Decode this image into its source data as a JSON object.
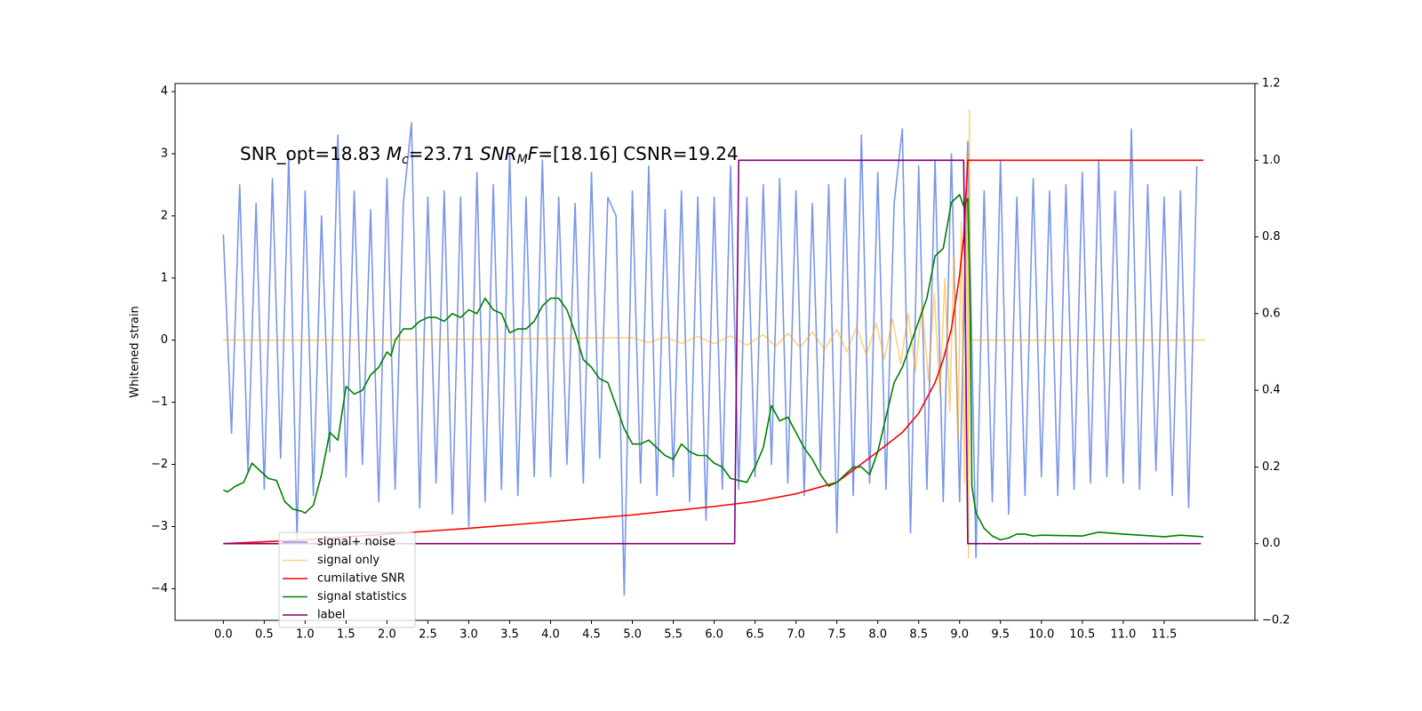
{
  "chart_data": {
    "type": "line",
    "annotation_parts": [
      {
        "text": "SNR_opt=18.83 "
      },
      {
        "text": "M",
        "style": "italic"
      },
      {
        "text": "c",
        "style": "italic-sub"
      },
      {
        "text": "=23.71  "
      },
      {
        "text": "SNR",
        "style": "italic"
      },
      {
        "text": "M",
        "style": "italic-sub"
      },
      {
        "text": "F",
        "style": "italic"
      },
      {
        "text": "=[18.16] CSNR=19.24"
      }
    ],
    "ylabel": "Whitened strain",
    "xlim": [
      -0.59,
      12.61
    ],
    "ylim": [
      -4.51,
      4.13
    ],
    "y2lim": [
      -0.2,
      1.2
    ],
    "xticks": [
      {
        "value": 0,
        "label": "0.0"
      },
      0.5,
      {
        "value": 1,
        "label": "1.0"
      },
      1.5,
      {
        "value": 2,
        "label": "2.0"
      },
      2.5,
      {
        "value": 3,
        "label": "3.0"
      },
      3.5,
      {
        "value": 4,
        "label": "4.0"
      },
      4.5,
      {
        "value": 5,
        "label": "5.0"
      },
      5.5,
      {
        "value": 6,
        "label": "6.0"
      },
      6.5,
      {
        "value": 7,
        "label": "7.0"
      },
      7.5,
      {
        "value": 8,
        "label": "8.0"
      },
      8.5,
      {
        "value": 9,
        "label": "9.0"
      },
      9.5,
      {
        "value": 10,
        "label": "10.0"
      },
      10.5,
      {
        "value": 11,
        "label": "11.0"
      },
      11.5
    ],
    "yticks": [
      {
        "value": -4,
        "label": "−4"
      },
      {
        "value": -3,
        "label": "−3"
      },
      {
        "value": -2,
        "label": "−2"
      },
      {
        "value": -1,
        "label": "−1"
      },
      0,
      1,
      2,
      3,
      4
    ],
    "y2ticks": [
      {
        "value": -0.2,
        "label": "−0.2"
      },
      {
        "value": 0,
        "label": "0.0"
      },
      0.2,
      0.4,
      0.6,
      0.8,
      {
        "value": 1,
        "label": "1.0"
      },
      1.2
    ],
    "legend": "lower left",
    "series": [
      {
        "name": "signal+ noise",
        "color": "#4169e1",
        "alpha": 0.7,
        "x": [
          0,
          0.1,
          0.2,
          0.3,
          0.4,
          0.5,
          0.6,
          0.7,
          0.8,
          0.9,
          1,
          1.1,
          1.2,
          1.3,
          1.4,
          1.5,
          1.6,
          1.7,
          1.8,
          1.9,
          2,
          2.1,
          2.2,
          2.3,
          2.4,
          2.5,
          2.6,
          2.7,
          2.8,
          2.9,
          3,
          3.1,
          3.2,
          3.3,
          3.4,
          3.5,
          3.6,
          3.7,
          3.8,
          3.9,
          4,
          4.1,
          4.2,
          4.3,
          4.4,
          4.5,
          4.6,
          4.7,
          4.8,
          4.9,
          5,
          5.1,
          5.2,
          5.3,
          5.4,
          5.5,
          5.6,
          5.7,
          5.8,
          5.9,
          6,
          6.1,
          6.2,
          6.3,
          6.4,
          6.5,
          6.6,
          6.7,
          6.8,
          6.9,
          7,
          7.1,
          7.2,
          7.3,
          7.4,
          7.5,
          7.6,
          7.7,
          7.8,
          7.9,
          8,
          8.1,
          8.2,
          8.3,
          8.4,
          8.5,
          8.6,
          8.7,
          8.8,
          8.9,
          9,
          9.1,
          9.2,
          9.3,
          9.4,
          9.5,
          9.6,
          9.7,
          9.8,
          9.9,
          10,
          10.1,
          10.2,
          10.3,
          10.4,
          10.5,
          10.6,
          10.7,
          10.8,
          10.9,
          11,
          11.1,
          11.2,
          11.3,
          11.4,
          11.5,
          11.6,
          11.7,
          11.8,
          11.9
        ],
        "values": [
          1.7,
          -1.5,
          2.5,
          -2.1,
          2.2,
          -2.4,
          2.6,
          -1.9,
          3.0,
          -3.2,
          2.4,
          -2.5,
          2.0,
          -1.8,
          3.3,
          -2.2,
          2.4,
          -2.0,
          2.1,
          -2.6,
          2.6,
          -2.4,
          2.2,
          3.5,
          -2.7,
          2.3,
          -2.3,
          2.4,
          -2.8,
          2.3,
          -3.0,
          2.7,
          -2.6,
          2.5,
          -2.4,
          3.0,
          -2.5,
          2.3,
          -2.2,
          2.9,
          -2.2,
          2.3,
          -2.0,
          2.2,
          -2.3,
          2.7,
          -1.9,
          2.3,
          2.0,
          -4.1,
          2.4,
          -2.3,
          2.8,
          -2.5,
          2.1,
          -2.2,
          2.4,
          -2.6,
          2.3,
          -2.9,
          2.3,
          -2.4,
          2.8,
          -2.4,
          2.3,
          -2.2,
          2.5,
          -2.0,
          2.6,
          -2.3,
          2.4,
          -2.5,
          2.2,
          -2.1,
          2.5,
          -3.1,
          2.6,
          -2.5,
          3.3,
          -2.3,
          2.7,
          -2.4,
          2.2,
          3.4,
          -3.1,
          2.8,
          -2.4,
          2.9,
          -2.6,
          3.0,
          -2.6,
          3.2,
          -3.5,
          2.4,
          -2.6,
          2.9,
          -2.8,
          2.3,
          -2.5,
          2.6,
          -2.2,
          2.4,
          -2.5,
          2.5,
          -2.4,
          2.7,
          -2.3,
          2.9,
          -2.2,
          2.4,
          -2.3,
          3.4,
          -2.4,
          2.5,
          -2.1,
          2.3,
          -2.5,
          2.4,
          -2.7,
          2.8
        ]
      },
      {
        "name": "signal only",
        "color": "orange",
        "alpha": 0.5,
        "x": [
          0,
          2,
          5,
          5.2,
          5.4,
          5.6,
          5.8,
          6,
          6.2,
          6.4,
          6.6,
          6.75,
          6.9,
          7.05,
          7.2,
          7.35,
          7.5,
          7.62,
          7.74,
          7.86,
          7.98,
          8.08,
          8.18,
          8.28,
          8.37,
          8.46,
          8.54,
          8.62,
          8.69,
          8.76,
          8.82,
          8.88,
          8.93,
          8.98,
          9.02,
          9.06,
          9.09,
          9.11,
          9.12,
          9.13,
          12
        ],
        "values": [
          0,
          0,
          0.04,
          -0.04,
          0.05,
          -0.05,
          0.06,
          -0.06,
          0.07,
          -0.08,
          0.09,
          -0.1,
          0.11,
          -0.12,
          0.13,
          -0.15,
          0.17,
          -0.19,
          0.21,
          -0.24,
          0.27,
          -0.3,
          0.34,
          -0.38,
          0.43,
          -0.5,
          0.57,
          -0.65,
          0.75,
          -0.87,
          1.0,
          -1.15,
          1.35,
          -1.6,
          1.9,
          -2.3,
          3.0,
          -3.5,
          3.7,
          0,
          0
        ]
      },
      {
        "name": "cumilative SNR",
        "color": "red",
        "axis": "y2",
        "x": [
          0,
          1,
          2,
          3,
          4,
          5,
          6,
          6.5,
          7,
          7.5,
          8,
          8.3,
          8.5,
          8.7,
          8.8,
          8.9,
          9,
          9.05,
          9.1,
          11.98
        ],
        "values": [
          0,
          0.01,
          0.025,
          0.04,
          0.057,
          0.075,
          0.097,
          0.11,
          0.13,
          0.16,
          0.24,
          0.29,
          0.34,
          0.42,
          0.48,
          0.56,
          0.7,
          0.8,
          1.0,
          1.0
        ]
      },
      {
        "name": "signal statistics",
        "color": "green",
        "axis": "y2",
        "x": [
          0,
          0.05,
          0.15,
          0.25,
          0.35,
          0.45,
          0.55,
          0.65,
          0.75,
          0.85,
          0.95,
          1,
          1.1,
          1.2,
          1.3,
          1.4,
          1.5,
          1.6,
          1.7,
          1.8,
          1.9,
          2,
          2.05,
          2.1,
          2.2,
          2.3,
          2.4,
          2.5,
          2.6,
          2.7,
          2.8,
          2.9,
          3,
          3.1,
          3.2,
          3.3,
          3.4,
          3.5,
          3.6,
          3.7,
          3.8,
          3.9,
          4,
          4.1,
          4.2,
          4.3,
          4.4,
          4.5,
          4.6,
          4.7,
          4.8,
          4.9,
          5,
          5.1,
          5.2,
          5.3,
          5.4,
          5.5,
          5.6,
          5.7,
          5.8,
          5.9,
          6,
          6.1,
          6.2,
          6.4,
          6.5,
          6.6,
          6.7,
          6.8,
          6.9,
          7,
          7.1,
          7.2,
          7.3,
          7.4,
          7.5,
          7.6,
          7.7,
          7.8,
          7.9,
          8,
          8.1,
          8.2,
          8.3,
          8.4,
          8.5,
          8.6,
          8.7,
          8.8,
          8.9,
          9,
          9.05,
          9.1,
          9.13,
          9.15,
          9.2,
          9.3,
          9.4,
          9.5,
          9.6,
          9.7,
          9.8,
          9.9,
          10,
          10.5,
          10.7,
          11,
          11.5,
          11.7,
          11.98
        ],
        "values": [
          0.14,
          0.135,
          0.15,
          0.16,
          0.21,
          0.19,
          0.17,
          0.165,
          0.11,
          0.09,
          0.085,
          0.08,
          0.1,
          0.18,
          0.29,
          0.27,
          0.41,
          0.39,
          0.4,
          0.44,
          0.46,
          0.5,
          0.49,
          0.53,
          0.56,
          0.56,
          0.58,
          0.59,
          0.59,
          0.58,
          0.6,
          0.59,
          0.61,
          0.6,
          0.64,
          0.61,
          0.6,
          0.55,
          0.56,
          0.56,
          0.58,
          0.62,
          0.64,
          0.64,
          0.61,
          0.55,
          0.48,
          0.46,
          0.43,
          0.42,
          0.36,
          0.3,
          0.26,
          0.26,
          0.27,
          0.25,
          0.23,
          0.22,
          0.26,
          0.24,
          0.23,
          0.23,
          0.21,
          0.2,
          0.17,
          0.16,
          0.2,
          0.25,
          0.36,
          0.32,
          0.33,
          0.29,
          0.25,
          0.22,
          0.18,
          0.15,
          0.16,
          0.18,
          0.2,
          0.2,
          0.18,
          0.24,
          0.33,
          0.42,
          0.46,
          0.52,
          0.58,
          0.64,
          0.75,
          0.77,
          0.89,
          0.91,
          0.88,
          0.9,
          0.6,
          0.15,
          0.08,
          0.04,
          0.02,
          0.01,
          0.015,
          0.025,
          0.025,
          0.02,
          0.022,
          0.02,
          0.03,
          0.025,
          0.018,
          0.022,
          0.018
        ]
      },
      {
        "name": "label",
        "color": "purple",
        "axis": "y2",
        "x": [
          0,
          6.25,
          6.3,
          9.05,
          9.1,
          11.95
        ],
        "values": [
          0,
          0,
          1,
          1,
          0,
          0
        ]
      }
    ]
  }
}
